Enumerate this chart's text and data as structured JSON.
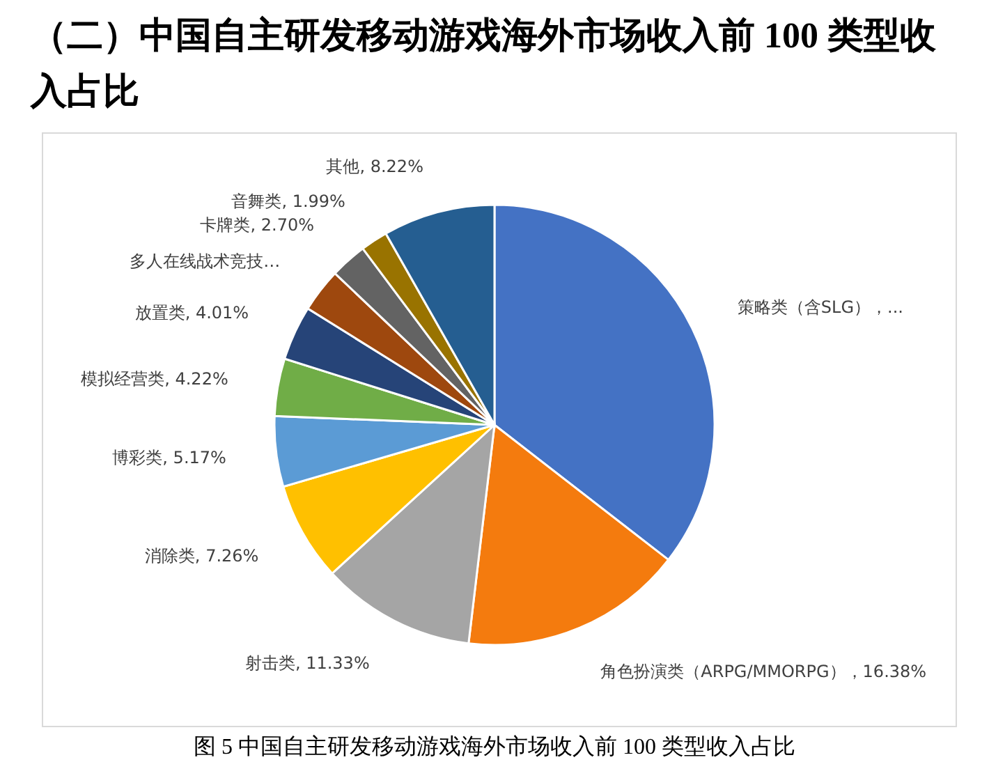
{
  "chart_data": {
    "type": "pie",
    "title": "（二）中国自主研发移动游戏海外市场收入前 100 类型收入占比",
    "categories": [
      "策略类（含SLG）",
      "角色扮演类（ARPG/MMORPG）",
      "射击类",
      "消除类",
      "博彩类",
      "模拟经营类",
      "放置类",
      "多人在线战术竞技…",
      "卡牌类",
      "音舞类",
      "其他"
    ],
    "values": [
      35.5,
      16.38,
      11.33,
      7.26,
      5.17,
      4.22,
      4.01,
      3.22,
      2.7,
      1.99,
      8.22
    ],
    "value_labels": [
      "...",
      "16.38%",
      "11.33%",
      "7.26%",
      "5.17%",
      "4.22%",
      "4.01%",
      null,
      "2.70%",
      "1.99%",
      "8.22%"
    ],
    "colors": [
      "#4472c4",
      "#f47b0e",
      "#a5a5a5",
      "#ffc000",
      "#5b9bd5",
      "#70ad47",
      "#264478",
      "#9e480e",
      "#636363",
      "#997300",
      "#255e91"
    ],
    "annotations": [
      "图 5  中国自主研发移动游戏海外市场收入前 100 类型收入占比"
    ]
  }
}
